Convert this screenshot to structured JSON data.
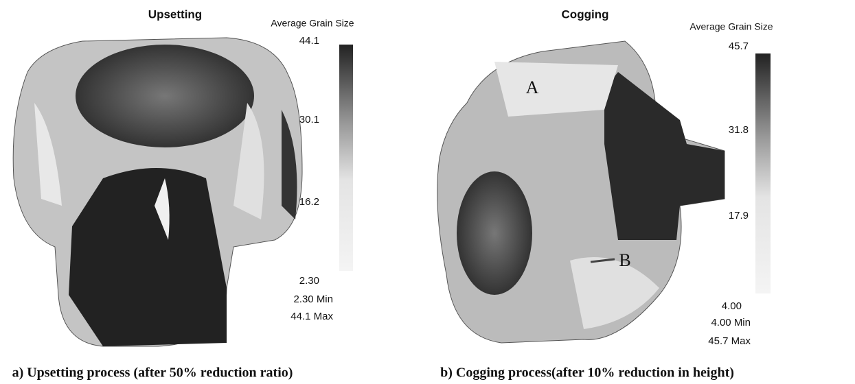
{
  "panels": [
    {
      "title": "Upsetting",
      "legend_title": "Average Grain Size",
      "scale_labels": [
        "44.1",
        "30.1",
        "16.2",
        "2.30"
      ],
      "min_label": "2.30 Min",
      "max_label": "44.1 Max",
      "caption": "a) Upsetting process (after 50% reduction ratio)"
    },
    {
      "title": "Cogging",
      "legend_title": "Average Grain Size",
      "scale_labels": [
        "45.7",
        "31.8",
        "17.9",
        "4.00"
      ],
      "min_label": "4.00 Min",
      "max_label": "45.7 Max",
      "caption": "b) Cogging process(after 10% reduction in height)",
      "point_labels": [
        "A",
        "B"
      ]
    }
  ]
}
